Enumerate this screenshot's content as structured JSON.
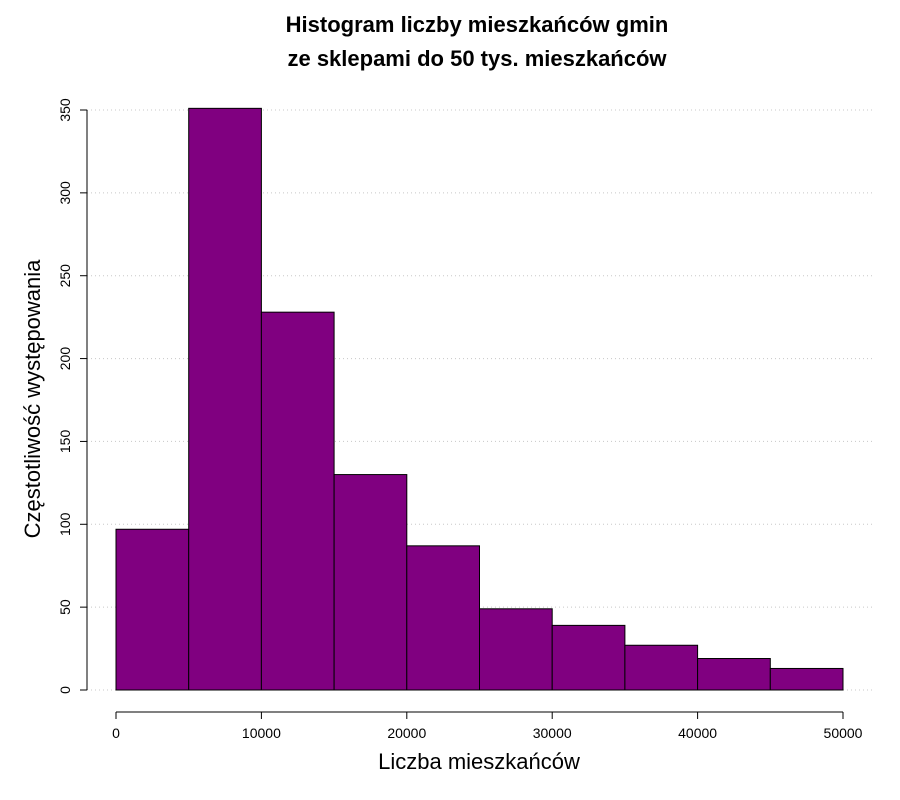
{
  "chart_data": {
    "type": "bar",
    "title_line1": "Histogram liczby mieszkańców gmin",
    "title_line2": "ze sklepami do 50 tys. mieszkańców",
    "xlabel": "Liczba mieszkańców",
    "ylabel": "Częstotliwość występowania",
    "bins": [
      {
        "x0": 0,
        "x1": 5000,
        "count": 97
      },
      {
        "x0": 5000,
        "x1": 10000,
        "count": 351
      },
      {
        "x0": 10000,
        "x1": 15000,
        "count": 228
      },
      {
        "x0": 15000,
        "x1": 20000,
        "count": 130
      },
      {
        "x0": 20000,
        "x1": 25000,
        "count": 87
      },
      {
        "x0": 25000,
        "x1": 30000,
        "count": 49
      },
      {
        "x0": 30000,
        "x1": 35000,
        "count": 39
      },
      {
        "x0": 35000,
        "x1": 40000,
        "count": 27
      },
      {
        "x0": 40000,
        "x1": 45000,
        "count": 19
      },
      {
        "x0": 45000,
        "x1": 50000,
        "count": 13
      }
    ],
    "xticks": [
      0,
      10000,
      20000,
      30000,
      40000,
      50000
    ],
    "xtick_labels": [
      "0",
      "10000",
      "20000",
      "30000",
      "40000",
      "50000"
    ],
    "yticks": [
      0,
      50,
      100,
      150,
      200,
      250,
      300,
      350
    ],
    "ytick_labels": [
      "0",
      "50",
      "100",
      "150",
      "200",
      "250",
      "300",
      "350"
    ],
    "xlim": [
      0,
      50000
    ],
    "ylim": [
      0,
      350
    ],
    "grid": "horizontal-dotted",
    "bar_color": "#800080",
    "bar_edge_color": "#000000",
    "grid_color": "#c8c8c8"
  }
}
